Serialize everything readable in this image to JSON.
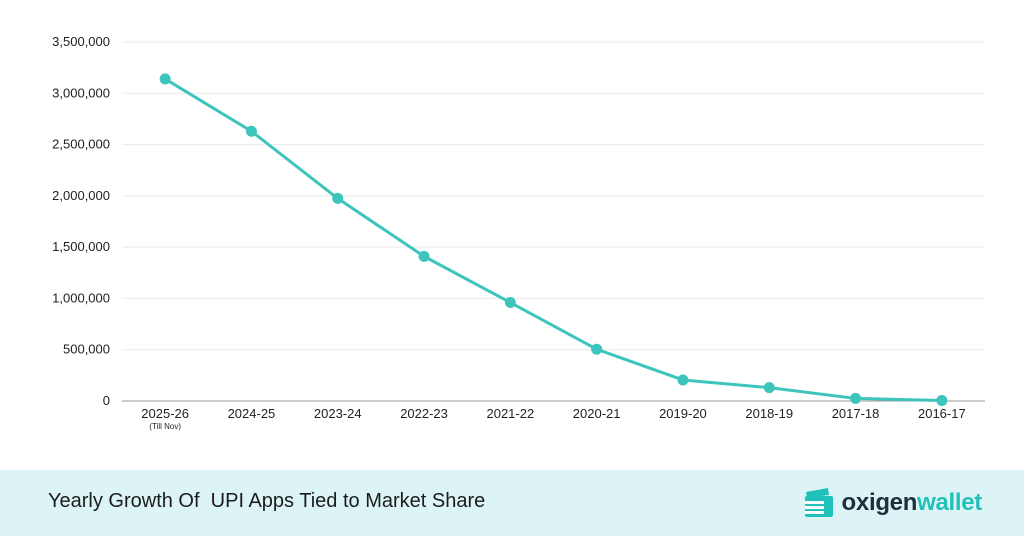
{
  "colors": {
    "line": "#3cc4bd",
    "footer_bg": "#dcf4f6",
    "grid": "#e9e9e9",
    "axis": "#9a9a9a",
    "brand_dark": "#1f2f3e",
    "brand_accent": "#21c1bb"
  },
  "chart_data": {
    "type": "line",
    "categories": [
      "2025-26",
      "2024-25",
      "2023-24",
      "2022-23",
      "2021-22",
      "2020-21",
      "2019-20",
      "2018-19",
      "2017-18",
      "2016-17"
    ],
    "category_notes": [
      "(Till Nov)",
      "",
      "",
      "",
      "",
      "",
      "",
      "",
      "",
      ""
    ],
    "series": [
      {
        "values": [
          3140000,
          2630000,
          1975000,
          1410000,
          960000,
          505000,
          205000,
          130000,
          25000,
          5000
        ]
      }
    ],
    "y_ticks": [
      "0",
      "500,000",
      "1,000,000",
      "1,500,000",
      "2,000,000",
      "2,500,000",
      "3,000,000",
      "3,500,000"
    ],
    "ylim": [
      0,
      3500000
    ],
    "grid": true,
    "xlabel": "",
    "ylabel": ""
  },
  "footer": {
    "title": "Yearly Growth Of  UPI Apps Tied to Market Share"
  },
  "brand": {
    "icon": "wallet-logo-icon",
    "part1": "oxigen",
    "part2": "wallet"
  }
}
